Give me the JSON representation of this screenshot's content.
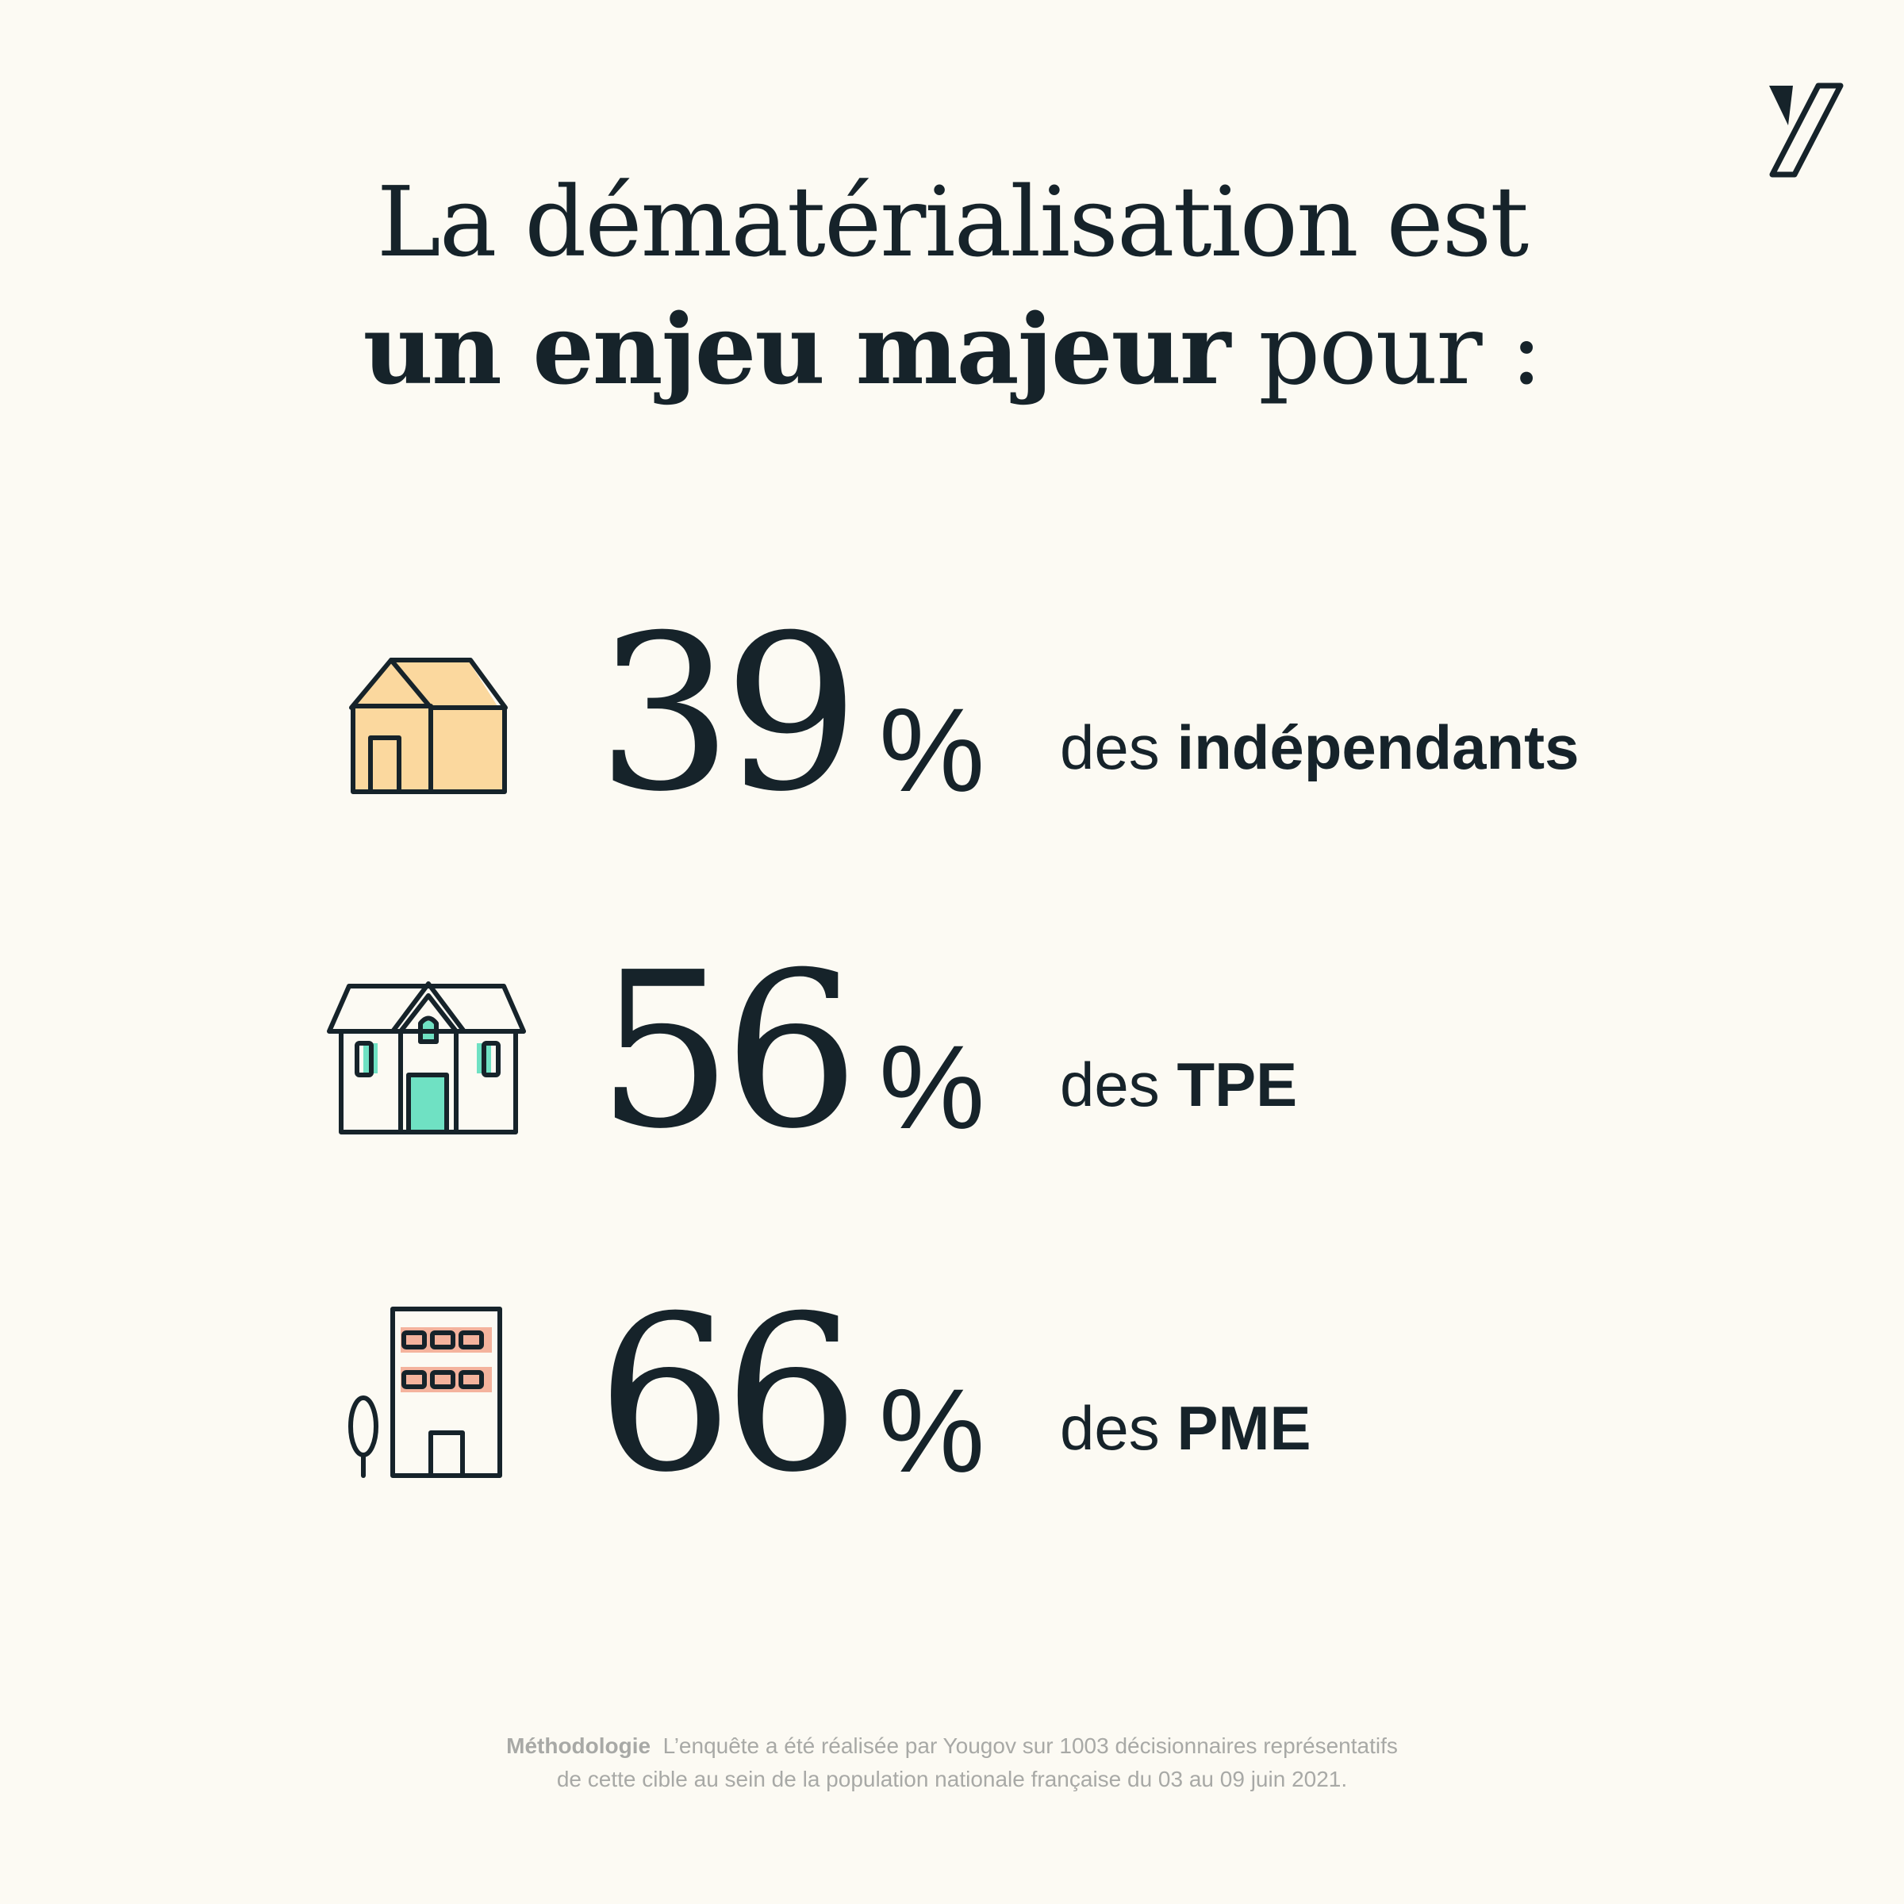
{
  "title": {
    "line1": "La dématérialisation est",
    "line2_bold": "un enjeu majeur",
    "line2_rest": "pour :"
  },
  "stats": [
    {
      "icon": "house-icon",
      "value": "39",
      "percent_sign": "%",
      "prefix": "des",
      "label": "indépendants",
      "value_percent": 39,
      "accent": "#fbd89e"
    },
    {
      "icon": "townhouse-icon",
      "value": "56",
      "percent_sign": "%",
      "prefix": "des",
      "label": "TPE",
      "value_percent": 56,
      "accent": "#6fe1c3"
    },
    {
      "icon": "office-building-icon",
      "value": "66",
      "percent_sign": "%",
      "prefix": "des",
      "label": "PME",
      "value_percent": 66,
      "accent": "#f4b39d"
    }
  ],
  "methodology": {
    "label": "Méthodologie",
    "line1": "L’enquête a été réalisée par Yougov sur 1003 décisionnaires représentatifs",
    "line2": "de cette cible au sein de la population nationale française du 03 au 09 juin 2021."
  },
  "colors": {
    "background": "#fcfaf3",
    "text": "#16232a",
    "muted": "#a8a9a6"
  }
}
